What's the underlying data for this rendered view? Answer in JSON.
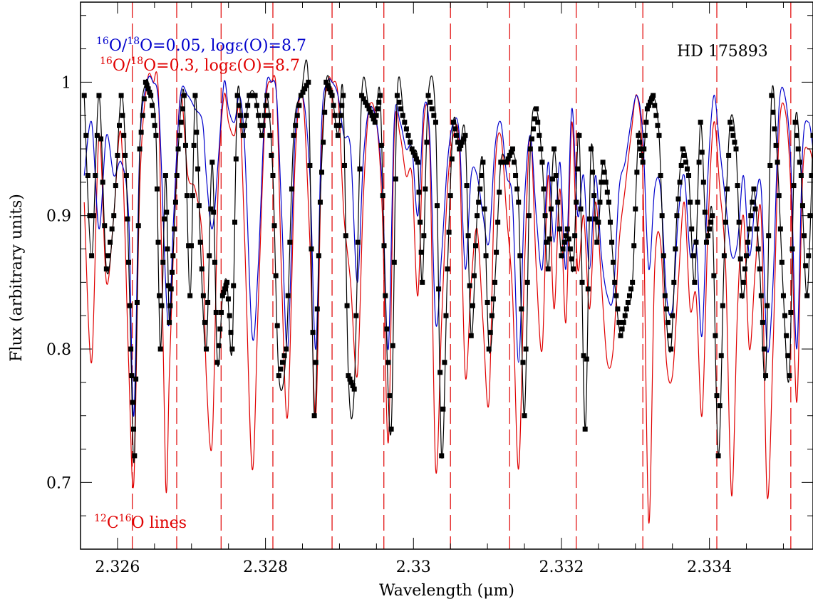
{
  "chart_data": {
    "type": "line",
    "title": "HD 175893",
    "xlabel": "Wavelength (μm)",
    "ylabel": "Flux (arbitrary units)",
    "xlim": [
      2.3255,
      2.3354
    ],
    "ylim": [
      0.65,
      1.06
    ],
    "x_ticks": [
      2.326,
      2.328,
      2.33,
      2.332,
      2.334
    ],
    "x_tick_labels": [
      "2.326",
      "2.328",
      "2.33",
      "2.332",
      "2.334"
    ],
    "y_ticks": [
      0.7,
      0.8,
      0.9,
      1.0
    ],
    "y_tick_labels": [
      "0.7",
      "0.8",
      "0.9",
      "1"
    ],
    "legend": {
      "placement": "top-left",
      "entries": [
        {
          "pre": "16",
          "a": "O/",
          "sup2": "18",
          "b": "O=0.05, log",
          "eps": "ε",
          "c": "(O)=8.7",
          "color": "#0000cc"
        },
        {
          "pre": "16",
          "a": "O/",
          "sup2": "18",
          "b": "O=0.3, log",
          "eps": "ε",
          "c": "(O)=8.7",
          "color": "#e00000"
        }
      ]
    },
    "annotation": {
      "sup1": "12",
      "a": "C",
      "sup2": "16",
      "b": "O lines",
      "color": "#e00000"
    },
    "co_lines": [
      2.3262,
      2.3268,
      2.3274,
      2.3281,
      2.3289,
      2.3296,
      2.3305,
      2.3313,
      2.3322,
      2.3331,
      2.3341,
      2.3351
    ],
    "series": [
      {
        "style": "observed",
        "color": "#000000",
        "marker": "square",
        "x": [
          2.32555,
          2.32565,
          2.32575,
          2.32585,
          2.32595,
          2.32605,
          2.32612,
          2.32618,
          2.32623,
          2.3263,
          2.32638,
          2.32645,
          2.32652,
          2.32658,
          2.32665,
          2.3267,
          2.32675,
          2.32682,
          2.3269,
          2.32698,
          2.32705,
          2.32712,
          2.3272,
          2.32728,
          2.32735,
          2.32742,
          2.32748,
          2.32755,
          2.32762,
          2.3277,
          2.32778,
          2.32786,
          2.32795,
          2.32802,
          2.3281,
          2.32818,
          2.32828,
          2.32838,
          2.32848,
          2.32858,
          2.32866,
          2.32874,
          2.32882,
          2.3289,
          2.32898,
          2.32905,
          2.32912,
          2.3292,
          2.3293,
          2.3294,
          2.32948,
          2.32955,
          2.32962,
          2.3297,
          2.32978,
          2.32988,
          2.32998,
          2.33006,
          2.33012,
          2.3302,
          2.3303,
          2.33038,
          2.33046,
          2.33054,
          2.33062,
          2.3307,
          2.33078,
          2.33086,
          2.33094,
          2.33102,
          2.3311,
          2.33118,
          2.33126,
          2.33134,
          2.33142,
          2.3315,
          2.33158,
          2.33166,
          2.33174,
          2.33182,
          2.3319,
          2.332,
          2.33208,
          2.33216,
          2.33224,
          2.33232,
          2.3324,
          2.33248,
          2.33256,
          2.33264,
          2.33272,
          2.3328,
          2.33288,
          2.33296,
          2.33304,
          2.3331,
          2.33316,
          2.33324,
          2.33332,
          2.3334,
          2.33348,
          2.33356,
          2.33364,
          2.33372,
          2.3338,
          2.33388,
          2.33396,
          2.33404,
          2.33412,
          2.3342,
          2.33428,
          2.33436,
          2.33444,
          2.33452,
          2.3346,
          2.33468,
          2.33476,
          2.33484,
          2.33492,
          2.335,
          2.33508,
          2.33516,
          2.33524,
          2.33532,
          2.3354
        ],
        "y": [
          0.99,
          0.87,
          0.99,
          0.86,
          0.9,
          0.99,
          0.93,
          0.8,
          0.72,
          0.95,
          1.0,
          0.99,
          0.96,
          0.8,
          0.93,
          0.82,
          0.87,
          0.95,
          0.99,
          0.84,
          0.99,
          0.88,
          0.8,
          0.94,
          0.79,
          0.84,
          0.85,
          0.8,
          0.99,
          0.96,
          0.99,
          0.99,
          0.96,
          0.99,
          0.93,
          0.78,
          0.8,
          0.96,
          0.99,
          1.0,
          0.75,
          0.91,
          1.0,
          0.99,
          0.96,
          0.99,
          0.78,
          0.77,
          0.99,
          0.98,
          0.97,
          0.99,
          0.84,
          0.74,
          0.99,
          0.97,
          0.95,
          0.94,
          0.85,
          0.99,
          0.97,
          0.72,
          0.86,
          0.97,
          0.95,
          0.96,
          0.81,
          0.9,
          0.94,
          0.8,
          0.85,
          0.94,
          0.94,
          0.95,
          0.91,
          0.75,
          0.95,
          0.98,
          0.94,
          0.86,
          0.95,
          0.87,
          0.89,
          0.86,
          0.96,
          0.74,
          0.95,
          0.88,
          0.94,
          0.91,
          0.85,
          0.81,
          0.83,
          0.85,
          0.96,
          0.94,
          0.98,
          0.99,
          0.96,
          0.84,
          0.8,
          0.9,
          0.95,
          0.93,
          0.85,
          0.97,
          0.88,
          0.9,
          0.72,
          0.87,
          0.97,
          0.95,
          0.84,
          0.88,
          0.92,
          0.86,
          0.78,
          0.99,
          0.94,
          0.84,
          0.78,
          0.97,
          0.93,
          0.84,
          0.96
        ],
        "note_x_compressed": "observed points shown with dense sampling between listed samples"
      },
      {
        "name": "16O/18O=0.05, logε(O)=8.7",
        "color": "#0000cc",
        "x": [
          2.32555,
          2.32565,
          2.32575,
          2.32585,
          2.32595,
          2.32605,
          2.32615,
          2.32622,
          2.3263,
          2.3264,
          2.32648,
          2.32656,
          2.32665,
          2.3267,
          2.32676,
          2.32685,
          2.32695,
          2.32705,
          2.32715,
          2.3272,
          2.32728,
          2.32736,
          2.32744,
          2.3275,
          2.32758,
          2.32765,
          2.32772,
          2.32782,
          2.3279,
          2.328,
          2.32808,
          2.32815,
          2.32822,
          2.3283,
          2.3284,
          2.3285,
          2.3286,
          2.32868,
          2.32876,
          2.32884,
          2.3289,
          2.32898,
          2.32906,
          2.32915,
          2.32924,
          2.32932,
          2.3294,
          2.3295,
          2.32958,
          2.32966,
          2.32974,
          2.32982,
          2.3299,
          2.32998,
          2.33006,
          2.33014,
          2.33022,
          2.3303,
          2.33038,
          2.33046,
          2.33054,
          2.33062,
          2.3307,
          2.33078,
          2.33086,
          2.33094,
          2.33102,
          2.3311,
          2.33118,
          2.33126,
          2.33134,
          2.33142,
          2.3315,
          2.33158,
          2.33166,
          2.33174,
          2.33182,
          2.3319,
          2.33198,
          2.33206,
          2.33214,
          2.33222,
          2.3323,
          2.33238,
          2.33246,
          2.33254,
          2.33262,
          2.3327,
          2.33278,
          2.33286,
          2.33294,
          2.33302,
          2.3331,
          2.33318,
          2.33326,
          2.33334,
          2.33342,
          2.3335,
          2.33358,
          2.33366,
          2.33374,
          2.33382,
          2.3339,
          2.33398,
          2.33406,
          2.33414,
          2.33422,
          2.3343,
          2.33438,
          2.33446,
          2.33454,
          2.33462,
          2.3347,
          2.33478,
          2.33486,
          2.33494,
          2.33502,
          2.3351,
          2.33518,
          2.33526,
          2.33534,
          2.3354
        ],
        "y": [
          0.93,
          0.97,
          0.89,
          0.96,
          0.93,
          0.94,
          0.9,
          0.75,
          0.95,
          1.0,
          1.0,
          0.98,
          0.85,
          0.82,
          0.9,
          0.99,
          0.99,
          0.98,
          0.97,
          0.93,
          0.89,
          0.94,
          1.0,
          0.98,
          0.97,
          0.99,
          0.95,
          0.81,
          0.86,
          0.99,
          1.0,
          0.99,
          0.9,
          0.8,
          0.96,
          0.99,
          0.93,
          0.8,
          0.97,
          1.0,
          1.0,
          0.99,
          0.96,
          0.95,
          0.85,
          0.94,
          0.98,
          0.97,
          0.92,
          0.8,
          0.97,
          0.97,
          0.95,
          0.95,
          0.9,
          0.98,
          0.96,
          0.82,
          0.87,
          0.94,
          0.97,
          0.96,
          0.86,
          0.93,
          0.93,
          0.9,
          0.88,
          0.95,
          0.97,
          0.93,
          0.91,
          0.79,
          0.91,
          0.96,
          0.9,
          0.86,
          0.94,
          0.88,
          0.94,
          0.86,
          0.98,
          0.9,
          0.93,
          0.86,
          0.93,
          0.87,
          0.84,
          0.84,
          0.92,
          0.94,
          0.97,
          0.99,
          0.96,
          0.86,
          0.92,
          0.92,
          0.84,
          0.83,
          0.9,
          0.93,
          0.87,
          0.88,
          0.81,
          0.93,
          0.99,
          0.95,
          0.91,
          0.87,
          0.88,
          0.93,
          0.87,
          0.91,
          0.92,
          0.8,
          0.85,
          0.98,
          0.99,
          0.94,
          0.8,
          0.95,
          0.97,
          0.95
        ],
        "note_x_compressed": ""
      },
      {
        "name": "16O/18O=0.3, logε(O)=8.7",
        "color": "#e00000",
        "x": [
          2.32555,
          2.32565,
          2.32575,
          2.32585,
          2.32595,
          2.32605,
          2.32615,
          2.32622,
          2.3263,
          2.3264,
          2.32648,
          2.32656,
          2.32665,
          2.3267,
          2.32676,
          2.32685,
          2.32695,
          2.32705,
          2.32715,
          2.3272,
          2.32728,
          2.32736,
          2.32744,
          2.3275,
          2.32758,
          2.32765,
          2.32772,
          2.32782,
          2.3279,
          2.328,
          2.32808,
          2.32815,
          2.32822,
          2.3283,
          2.3284,
          2.3285,
          2.3286,
          2.32868,
          2.32876,
          2.32884,
          2.3289,
          2.32898,
          2.32906,
          2.32915,
          2.32924,
          2.32932,
          2.3294,
          2.3295,
          2.32958,
          2.32966,
          2.32974,
          2.32982,
          2.3299,
          2.32998,
          2.33006,
          2.33014,
          2.33022,
          2.3303,
          2.33038,
          2.33046,
          2.33054,
          2.33062,
          2.3307,
          2.33078,
          2.33086,
          2.33094,
          2.33102,
          2.3311,
          2.33118,
          2.33126,
          2.33134,
          2.33142,
          2.3315,
          2.33158,
          2.33166,
          2.33174,
          2.33182,
          2.3319,
          2.33198,
          2.33206,
          2.33214,
          2.33222,
          2.3323,
          2.33238,
          2.33246,
          2.33254,
          2.33262,
          2.3327,
          2.33278,
          2.33286,
          2.33294,
          2.33302,
          2.3331,
          2.33318,
          2.33326,
          2.33334,
          2.33342,
          2.3335,
          2.33358,
          2.33366,
          2.33374,
          2.33382,
          2.3339,
          2.33398,
          2.33406,
          2.33414,
          2.33422,
          2.3343,
          2.33438,
          2.33446,
          2.33454,
          2.33462,
          2.3347,
          2.33478,
          2.33486,
          2.33494,
          2.33502,
          2.3351,
          2.33518,
          2.33526,
          2.33534,
          2.3354
        ],
        "y": [
          0.91,
          0.79,
          0.96,
          0.85,
          0.9,
          0.96,
          0.79,
          0.7,
          0.92,
          1.0,
          1.0,
          0.98,
          0.7,
          0.78,
          0.88,
          0.99,
          0.93,
          0.92,
          0.88,
          0.78,
          0.73,
          0.92,
          0.99,
          0.97,
          0.96,
          0.98,
          0.88,
          0.71,
          0.83,
          0.98,
          1.0,
          0.99,
          0.85,
          0.75,
          0.94,
          0.99,
          0.88,
          0.75,
          0.95,
          1.0,
          1.0,
          0.99,
          0.9,
          0.85,
          0.78,
          0.91,
          0.98,
          0.97,
          0.9,
          0.73,
          0.96,
          0.96,
          0.93,
          0.93,
          0.84,
          0.97,
          0.95,
          0.71,
          0.82,
          0.92,
          0.96,
          0.95,
          0.78,
          0.85,
          0.89,
          0.82,
          0.76,
          0.93,
          0.96,
          0.9,
          0.84,
          0.71,
          0.86,
          0.96,
          0.86,
          0.8,
          0.93,
          0.83,
          0.92,
          0.82,
          0.97,
          0.86,
          0.9,
          0.83,
          0.91,
          0.85,
          0.79,
          0.8,
          0.88,
          0.92,
          0.96,
          0.99,
          0.93,
          0.67,
          0.86,
          0.88,
          0.79,
          0.78,
          0.85,
          0.91,
          0.83,
          0.84,
          0.75,
          0.89,
          0.97,
          0.92,
          0.86,
          0.69,
          0.83,
          0.9,
          0.8,
          0.86,
          0.9,
          0.69,
          0.8,
          0.96,
          0.98,
          0.92,
          0.76,
          0.93,
          0.95,
          0.94
        ],
        "note_x_compressed": ""
      }
    ]
  }
}
